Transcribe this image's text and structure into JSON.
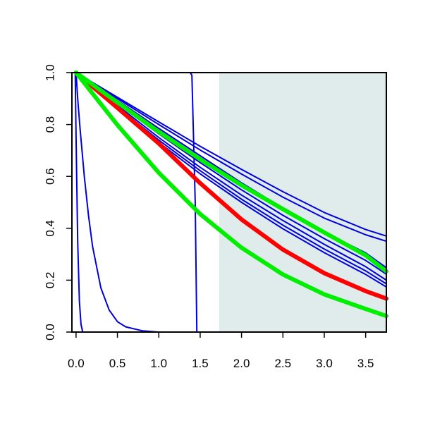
{
  "chart_data": {
    "type": "line",
    "title": "",
    "xlabel": "",
    "ylabel": "",
    "xlim": [
      -0.05,
      3.75
    ],
    "ylim": [
      0.0,
      1.0
    ],
    "x_ticks": [
      "0.0",
      "0.5",
      "1.0",
      "1.5",
      "2.0",
      "2.5",
      "3.0",
      "3.5"
    ],
    "y_ticks": [
      "0.0",
      "0.2",
      "0.4",
      "0.6",
      "0.8",
      "1.0"
    ],
    "shaded_region": {
      "x_from": 1.73,
      "x_to": 3.75,
      "color": "#e0ecec"
    },
    "grid": false,
    "legend": "none",
    "series": [
      {
        "color": "#ff0000",
        "width": "thick",
        "x": [
          0,
          0.5,
          1.0,
          1.5,
          2.0,
          2.5,
          3.0,
          3.5,
          3.75
        ],
        "y": [
          1.0,
          0.864,
          0.727,
          0.574,
          0.434,
          0.318,
          0.227,
          0.158,
          0.129
        ]
      },
      {
        "color": "#00ee00",
        "width": "thick",
        "x": [
          0,
          0.5,
          1.0,
          1.5,
          2.0,
          2.5,
          3.0,
          3.5,
          3.75
        ],
        "y": [
          1.0,
          0.798,
          0.614,
          0.455,
          0.325,
          0.222,
          0.145,
          0.089,
          0.062
        ]
      },
      {
        "color": "#00ee00",
        "width": "thick",
        "x": [
          0,
          0.5,
          1.0,
          1.5,
          2.0,
          2.5,
          3.0,
          3.5,
          3.75
        ],
        "y": [
          1.0,
          0.885,
          0.772,
          0.666,
          0.566,
          0.474,
          0.384,
          0.296,
          0.234
        ]
      },
      {
        "color": "#0000dd",
        "width": "thin",
        "x": [
          0,
          0.5,
          1.0,
          1.5,
          2.0,
          2.5,
          3.0,
          3.5,
          3.75
        ],
        "y": [
          1.0,
          0.905,
          0.81,
          0.716,
          0.627,
          0.541,
          0.461,
          0.395,
          0.37
        ]
      },
      {
        "color": "#0000dd",
        "width": "thin",
        "x": [
          0,
          0.5,
          1.0,
          1.5,
          2.0,
          2.5,
          3.0,
          3.5,
          3.75
        ],
        "y": [
          1.0,
          0.9,
          0.8,
          0.702,
          0.609,
          0.52,
          0.439,
          0.375,
          0.35
        ]
      },
      {
        "color": "#0000dd",
        "width": "thin",
        "x": [
          0,
          0.5,
          1.0,
          1.5,
          2.0,
          2.5,
          3.0,
          3.5,
          3.75
        ],
        "y": [
          1.0,
          0.893,
          0.785,
          0.68,
          0.575,
          0.478,
          0.385,
          0.305,
          0.248
        ]
      },
      {
        "color": "#0000dd",
        "width": "thin",
        "x": [
          0,
          0.5,
          1.0,
          1.5,
          2.0,
          2.5,
          3.0,
          3.5,
          3.75
        ],
        "y": [
          1.0,
          0.88,
          0.764,
          0.653,
          0.548,
          0.45,
          0.36,
          0.276,
          0.223
        ]
      },
      {
        "color": "#0000dd",
        "width": "thin",
        "x": [
          0,
          0.5,
          1.0,
          1.5,
          2.0,
          2.5,
          3.0,
          3.5,
          3.75
        ],
        "y": [
          1.0,
          0.873,
          0.75,
          0.635,
          0.528,
          0.43,
          0.338,
          0.252,
          0.2
        ]
      },
      {
        "color": "#0000dd",
        "width": "thin",
        "x": [
          0,
          0.5,
          1.0,
          1.5,
          2.0,
          2.5,
          3.0,
          3.5,
          3.75
        ],
        "y": [
          1.0,
          0.866,
          0.74,
          0.622,
          0.512,
          0.412,
          0.32,
          0.236,
          0.186
        ]
      },
      {
        "color": "#0000dd",
        "width": "thin",
        "x": [
          0,
          0.5,
          1.0,
          1.5,
          2.0,
          2.5,
          3.0,
          3.5,
          3.75
        ],
        "y": [
          1.0,
          0.86,
          0.731,
          0.61,
          0.5,
          0.398,
          0.306,
          0.222,
          0.174
        ]
      },
      {
        "color": "#0000dd",
        "width": "thin",
        "x": [
          0,
          0.02,
          0.05,
          0.1,
          0.15,
          0.2,
          0.3,
          0.4,
          0.5,
          0.6,
          0.8,
          1.0,
          3.75
        ],
        "y": [
          1.0,
          0.9,
          0.78,
          0.6,
          0.45,
          0.33,
          0.17,
          0.085,
          0.04,
          0.02,
          0.005,
          0.0,
          0.0
        ]
      },
      {
        "color": "#0000dd",
        "width": "thin",
        "x": [
          -0.01,
          0.0,
          0.02,
          0.04,
          0.06,
          0.08,
          3.75
        ],
        "y": [
          1.0,
          0.75,
          0.35,
          0.12,
          0.03,
          0.0,
          0.0
        ]
      },
      {
        "color": "#0000dd",
        "width": "thin",
        "x": [
          0,
          1.38,
          1.4,
          1.44,
          1.46,
          3.75
        ],
        "y": [
          1.0,
          1.0,
          0.99,
          0.5,
          0.0,
          0.0
        ]
      }
    ]
  }
}
